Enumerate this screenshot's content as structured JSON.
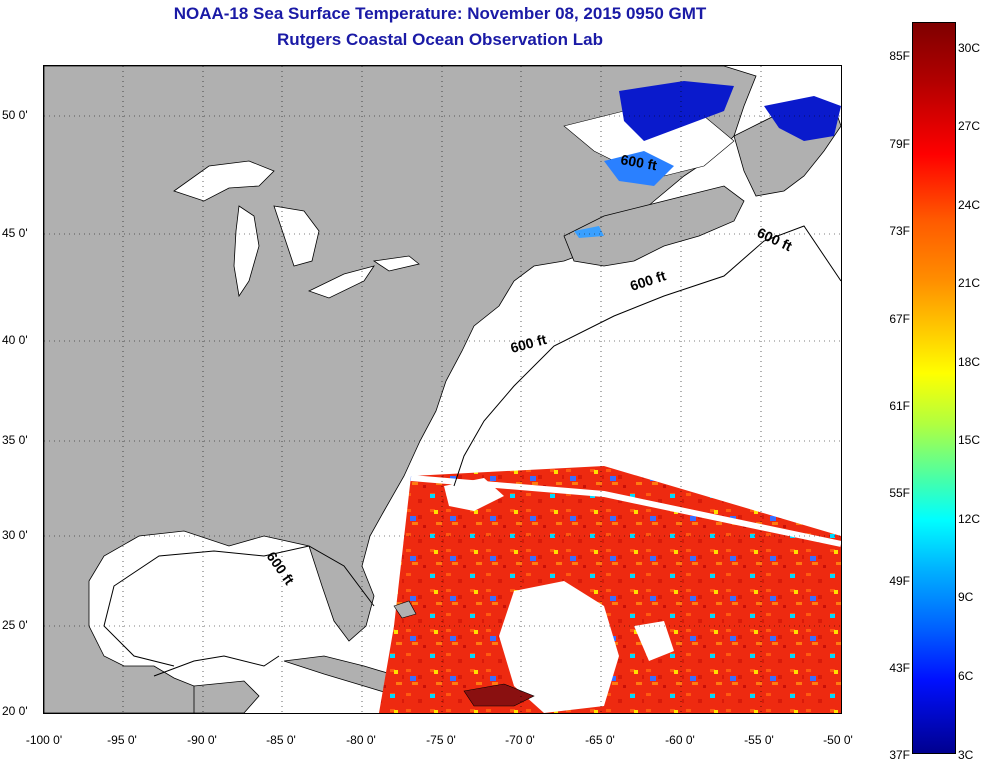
{
  "header": {
    "title": "NOAA-18 Sea Surface Temperature:  November 08, 2015 0950 GMT",
    "subtitle": "Rutgers Coastal Ocean Observation Lab"
  },
  "axes": {
    "lat_labels": [
      "50 0'",
      "45 0'",
      "40 0'",
      "35 0'",
      "30 0'",
      "25 0'",
      "20 0'"
    ],
    "lon_labels": [
      "-100 0'",
      "-95 0'",
      "-90 0'",
      "-85 0'",
      "-80 0'",
      "-75 0'",
      "-70 0'",
      "-65 0'",
      "-60 0'",
      "-55 0'",
      "-50 0'"
    ],
    "lat_range": [
      20,
      52.7
    ],
    "lon_range": [
      -100,
      -50
    ]
  },
  "contour_labels": [
    "600 ft",
    "600 ft",
    "600 ft",
    "600 ft",
    "600 ft"
  ],
  "colorbar": {
    "fahrenheit": [
      "85F",
      "79F",
      "73F",
      "67F",
      "61F",
      "55F",
      "49F",
      "43F",
      "37F"
    ],
    "celsius": [
      "30C",
      "27C",
      "24C",
      "21C",
      "18C",
      "15C",
      "12C",
      "9C",
      "6C",
      "3C"
    ],
    "colors": [
      "#7f0000",
      "#ff0000",
      "#ff8c00",
      "#ffff00",
      "#40ffb0",
      "#00ffff",
      "#0060ff",
      "#00008f"
    ]
  },
  "colors": {
    "land": "#b0b0b0",
    "ocean_no_data": "#ffffff",
    "warm_sst": "#ee2a10",
    "title_text": "#1a1aa6"
  }
}
